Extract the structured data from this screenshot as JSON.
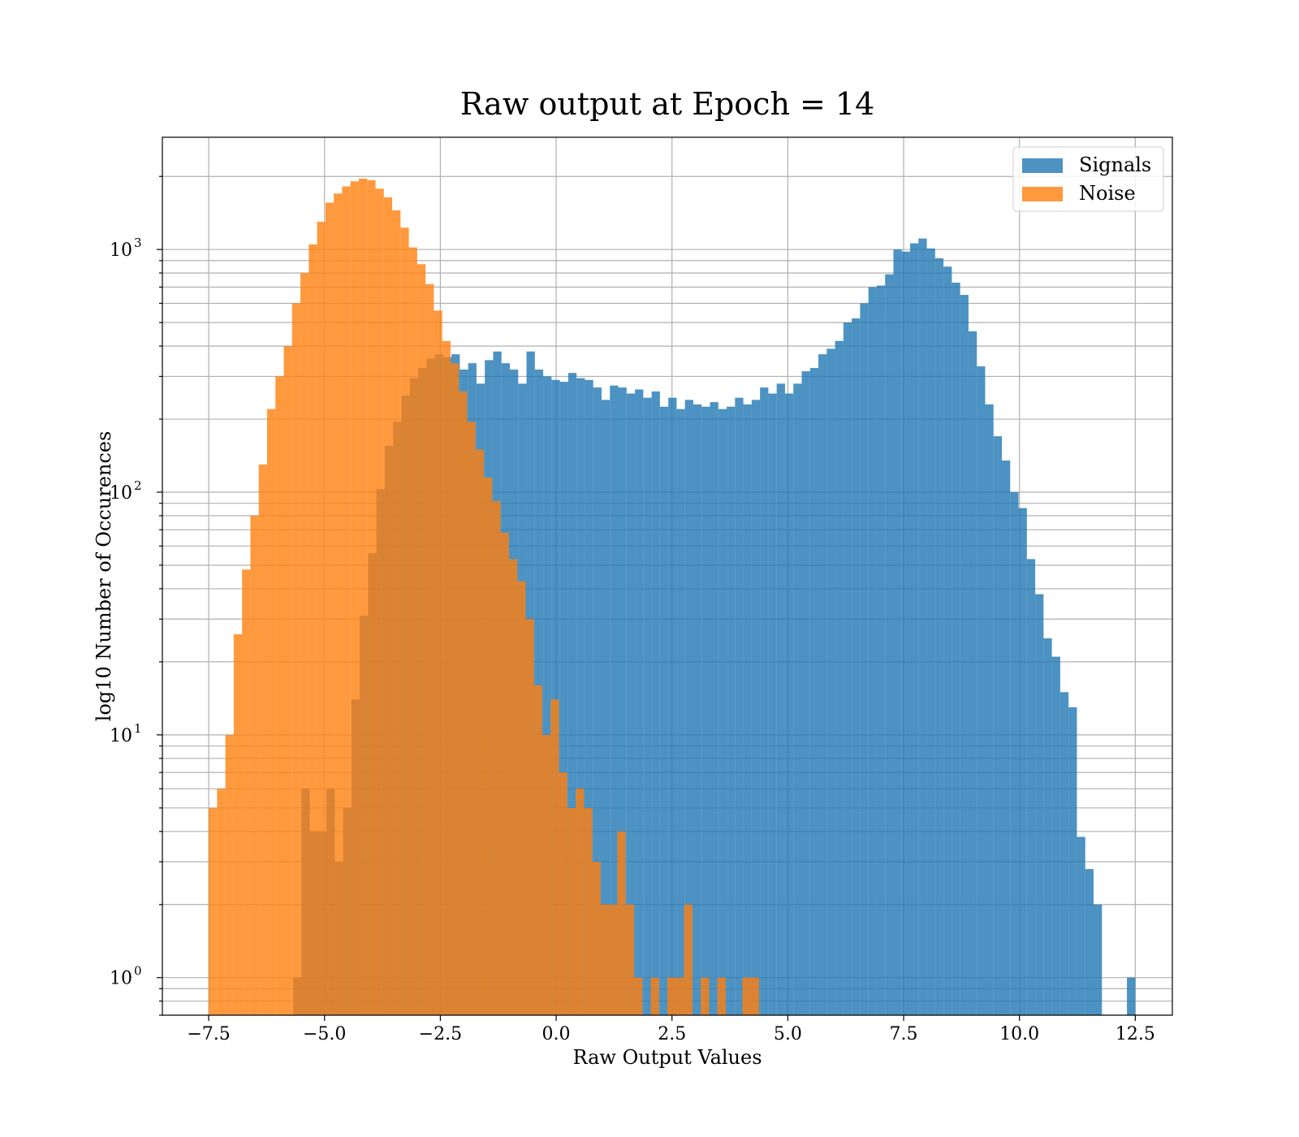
{
  "chart_data": {
    "type": "histogram",
    "title": "Raw output at Epoch = 14",
    "xlabel": "Raw Output Values",
    "ylabel": "log10 Number of Occurences",
    "xlim": [
      -8.5,
      13.3
    ],
    "ylim": [
      0.7,
      2900
    ],
    "yscale": "log",
    "grid": true,
    "legend_position": "top-right",
    "x_ticks": [
      -7.5,
      -5.0,
      -2.5,
      0.0,
      2.5,
      5.0,
      7.5,
      10.0,
      12.5
    ],
    "x_tick_labels": [
      "−7.5",
      "−5.0",
      "−2.5",
      "0.0",
      "2.5",
      "5.0",
      "7.5",
      "10.0",
      "12.5"
    ],
    "y_ticks": [
      1,
      10,
      100,
      1000
    ],
    "y_tick_bases": [
      "10",
      "10",
      "10",
      "10"
    ],
    "y_tick_exponents": [
      "0",
      "1",
      "2",
      "3"
    ],
    "series": [
      {
        "name": "Signals",
        "color": "#1f77b4",
        "opacity": 0.8,
        "bin_start": -5.68,
        "bin_width": 0.18,
        "values": [
          1,
          6,
          4,
          4,
          6,
          3,
          5,
          14,
          31,
          56,
          103,
          155,
          195,
          250,
          295,
          325,
          355,
          370,
          360,
          370,
          320,
          340,
          280,
          350,
          380,
          340,
          320,
          280,
          380,
          320,
          300,
          290,
          285,
          310,
          295,
          290,
          270,
          240,
          275,
          270,
          255,
          265,
          245,
          260,
          225,
          245,
          220,
          240,
          230,
          225,
          235,
          220,
          225,
          245,
          230,
          240,
          270,
          255,
          280,
          255,
          280,
          315,
          325,
          370,
          390,
          420,
          500,
          520,
          600,
          700,
          710,
          790,
          1000,
          980,
          1060,
          1110,
          1010,
          920,
          850,
          730,
          650,
          460,
          330,
          230,
          170,
          135,
          100,
          86,
          53,
          38,
          25,
          21,
          15,
          13,
          3.8,
          2.8,
          2.0,
          0,
          0,
          0,
          1
        ]
      },
      {
        "name": "Noise",
        "color": "#ff7f0e",
        "opacity": 0.8,
        "bin_start": -7.5,
        "bin_width": 0.18,
        "values": [
          5,
          6,
          10,
          26,
          48,
          80,
          130,
          220,
          300,
          400,
          600,
          800,
          1050,
          1300,
          1560,
          1700,
          1820,
          1910,
          1960,
          1930,
          1780,
          1640,
          1450,
          1230,
          1020,
          870,
          720,
          560,
          420,
          340,
          260,
          195,
          150,
          115,
          92,
          68,
          53,
          43,
          30,
          16,
          10,
          14,
          7,
          5,
          6,
          5,
          3,
          2,
          2,
          4,
          2,
          1,
          0,
          1,
          0,
          1,
          1,
          2,
          0,
          1,
          0,
          1,
          0,
          0,
          1,
          1
        ]
      }
    ]
  }
}
